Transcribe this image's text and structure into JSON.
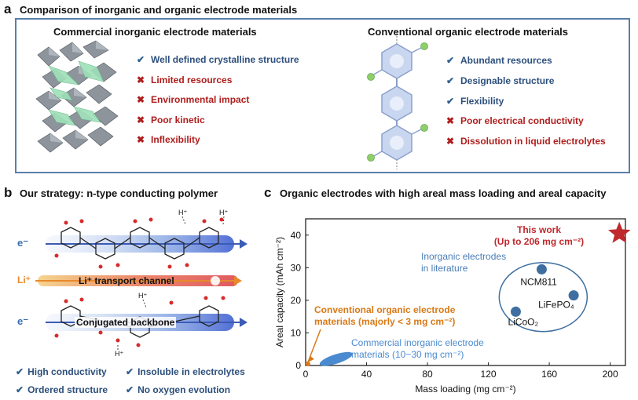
{
  "panel_a": {
    "letter": "a",
    "title": "Comparison of inorganic and organic electrode materials",
    "left": {
      "heading": "Commercial inorganic electrode materials",
      "items": [
        {
          "text": "Well defined crystalline structure",
          "kind": "check"
        },
        {
          "text": "Limited resources",
          "kind": "cross"
        },
        {
          "text": "Environmental impact",
          "kind": "cross"
        },
        {
          "text": "Poor kinetic",
          "kind": "cross"
        },
        {
          "text": "Inflexibility",
          "kind": "cross"
        }
      ]
    },
    "right": {
      "heading": "Conventional organic electrode materials",
      "items": [
        {
          "text": "Abundant resources",
          "kind": "check"
        },
        {
          "text": "Designable structure",
          "kind": "check"
        },
        {
          "text": "Flexibility",
          "kind": "check"
        },
        {
          "text": "Poor electrical conductivity",
          "kind": "cross"
        },
        {
          "text": "Dissolution in liquid electrolytes",
          "kind": "cross"
        }
      ]
    }
  },
  "panel_b": {
    "letter": "b",
    "title": "Our strategy: n-type conducting polymer",
    "electron_label": "e⁻",
    "li_label": "Li⁺",
    "h_label": "H⁺",
    "transport_label": "Li⁺ transport channel",
    "backbone_label": "Conjugated backbone",
    "features": [
      "High conductivity",
      "Insoluble in electrolytes",
      "Ordered structure",
      "No oxygen evolution"
    ]
  },
  "panel_c": {
    "letter": "c",
    "title": "Organic electrodes with high areal mass loading and areal capacity",
    "chart_data": {
      "type": "scatter",
      "xlabel": "Mass loading (mg cm⁻²)",
      "ylabel": "Areal capacity (mAh cm⁻²)",
      "xlim": [
        0,
        210
      ],
      "ylim": [
        0,
        45
      ],
      "xticks": [
        0,
        40,
        80,
        120,
        160,
        200
      ],
      "yticks": [
        0,
        10,
        20,
        30,
        40
      ],
      "points": [
        {
          "label": "NCM811",
          "x": 155,
          "y": 29.5
        },
        {
          "label": "LiFePO₄",
          "x": 176,
          "y": 21.5
        },
        {
          "label": "LiCoO₂",
          "x": 138,
          "y": 16.5
        }
      ],
      "this_work": {
        "x": 206,
        "y": 40.5,
        "label_line1": "This work",
        "label_line2": "(Up to 206 mg cm⁻²)"
      },
      "regions": {
        "inorganic_literature": "Inorganic electrodes\nin literature",
        "commercial_inorganic_line1": "Commercial inorganic electrode",
        "commercial_inorganic_line2": "materials (10~30 mg cm⁻²)",
        "conventional_organic_line1": "Conventional organic electrode",
        "conventional_organic_line2": "materials (majorly < 3 mg cm⁻²)"
      },
      "colors": {
        "this_work": "#c0282d",
        "inorganic": "#3e6fa0",
        "commercial": "#4a8ad0",
        "organic": "#d97a17"
      }
    }
  }
}
